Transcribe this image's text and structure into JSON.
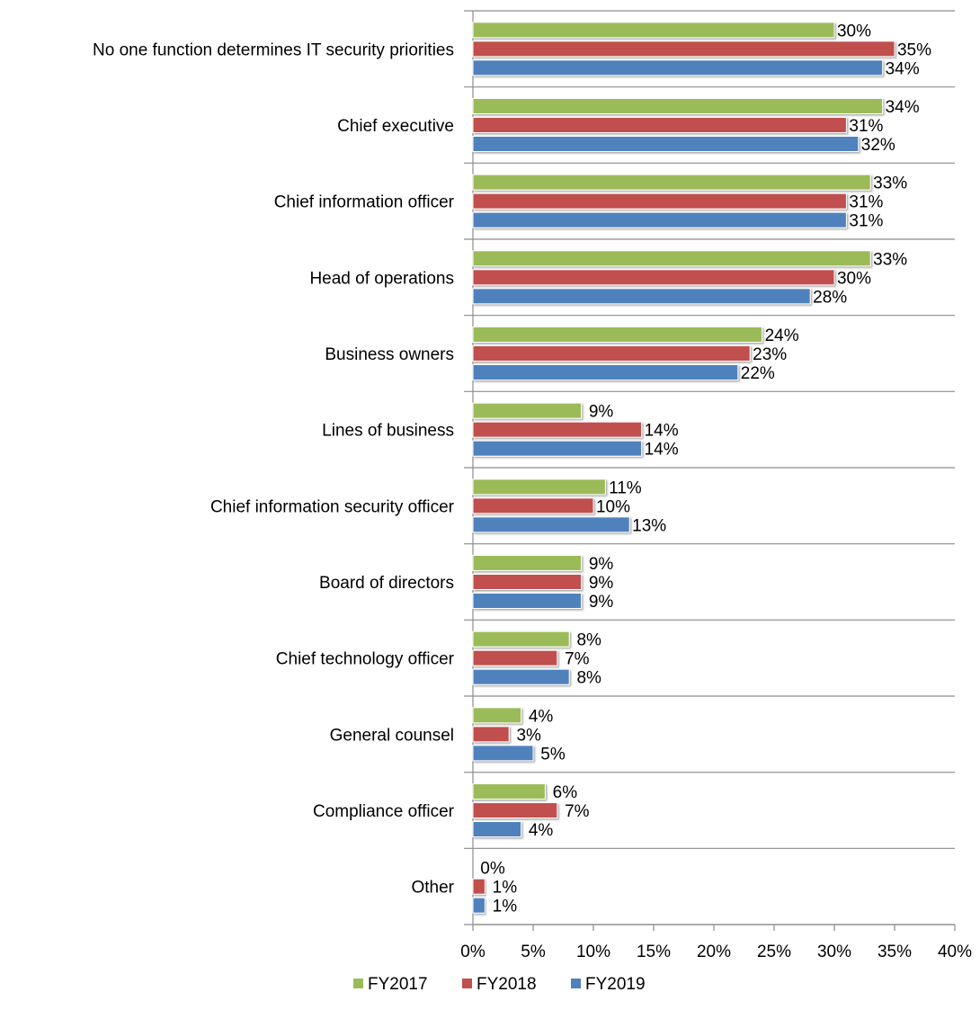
{
  "chart_data": {
    "type": "bar",
    "orientation": "horizontal",
    "categories": [
      "No one function determines IT security priorities",
      "Chief executive",
      "Chief information officer",
      "Head of operations",
      "Business owners",
      "Lines of business",
      "Chief information security officer",
      "Board of directors",
      "Chief technology officer",
      "General counsel",
      "Compliance officer",
      "Other"
    ],
    "series": [
      {
        "name": "FY2017",
        "color": "#9BBB59",
        "values": [
          30,
          34,
          33,
          33,
          24,
          9,
          11,
          9,
          8,
          4,
          6,
          0
        ],
        "labels": [
          "30%",
          "34%",
          "33%",
          "33%",
          "24%",
          "9%",
          "11%",
          "9%",
          "8%",
          "4%",
          "6%",
          "0%"
        ]
      },
      {
        "name": "FY2018",
        "color": "#C0504D",
        "values": [
          35,
          31,
          31,
          30,
          23,
          14,
          10,
          9,
          7,
          3,
          7,
          1
        ],
        "labels": [
          "35%",
          "31%",
          "31%",
          "30%",
          "23%",
          "14%",
          "10%",
          "9%",
          "7%",
          "3%",
          "7%",
          "1%"
        ]
      },
      {
        "name": "FY2019",
        "color": "#4F81BD",
        "values": [
          34,
          32,
          31,
          28,
          22,
          14,
          13,
          9,
          8,
          5,
          4,
          1
        ],
        "labels": [
          "34%",
          "32%",
          "31%",
          "28%",
          "22%",
          "14%",
          "13%",
          "9%",
          "8%",
          "5%",
          "4%",
          "1%"
        ]
      }
    ],
    "xlim": [
      0,
      40
    ],
    "x_ticks": [
      "0%",
      "5%",
      "10%",
      "15%",
      "20%",
      "25%",
      "30%",
      "35%",
      "40%"
    ],
    "title": "",
    "xlabel": "",
    "ylabel": "",
    "grid": false,
    "legend": "bottom-center"
  }
}
